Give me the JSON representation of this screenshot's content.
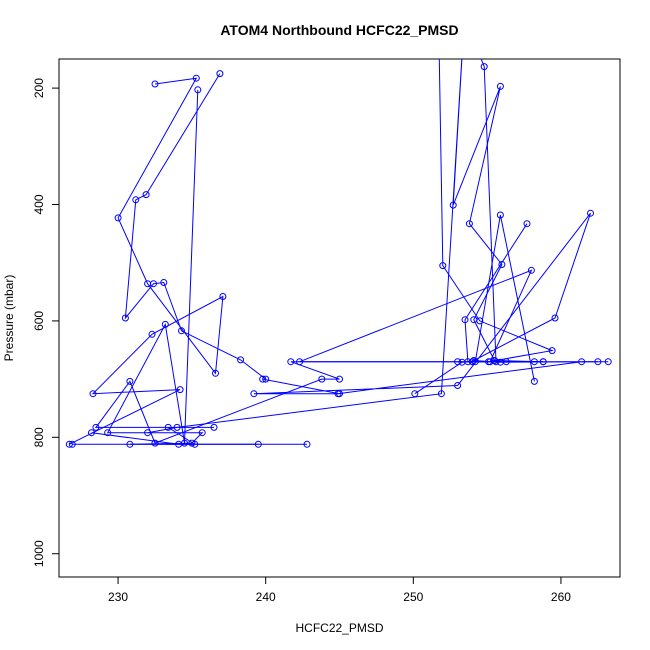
{
  "chart_data": {
    "type": "line",
    "title": "ATOM4 Northbound HCFC22_PMSD",
    "xlabel": "HCFC22_PMSD",
    "ylabel": "Pressure (mbar)",
    "xlim": [
      226,
      264
    ],
    "ylim": [
      1040,
      150
    ],
    "y_reversed": true,
    "x_ticks": [
      230,
      240,
      250,
      260
    ],
    "y_ticks": [
      200,
      400,
      600,
      800,
      1000
    ],
    "grid": false,
    "line_color": "#0000ff",
    "point_color": "#0000ff",
    "segments": [
      {
        "x": [
          236.9,
          231.9,
          231.2,
          230.5,
          232.4,
          233.1,
          234.3,
          238.3,
          240.0
        ],
        "y": [
          175,
          383,
          392,
          595,
          536,
          534,
          617,
          667,
          700
        ]
      },
      {
        "x": [
          232.5,
          235.3,
          230.0,
          232.0,
          236.6,
          237.1,
          232.3,
          228.3,
          234.2,
          226.7
        ],
        "y": [
          193,
          183,
          423,
          536,
          690,
          558,
          623,
          725,
          718,
          812
        ]
      },
      {
        "x": [
          235.4,
          234.5,
          233.2,
          229.3,
          235.7,
          235.0,
          230.8,
          239.5,
          234.1,
          228.2
        ],
        "y": [
          203,
          810,
          606,
          792,
          792,
          810,
          812,
          812,
          812,
          792
        ]
      },
      {
        "x": [
          226.9,
          242.8,
          235.2,
          233.4,
          236.5,
          228.5,
          230.8,
          232.5,
          243.8,
          245.0,
          241.7,
          263.2
        ],
        "y": [
          812,
          812,
          812,
          783,
          783,
          783,
          704,
          810,
          700,
          700,
          670,
          670
        ]
      },
      {
        "x": [
          239.8,
          245.0,
          239.2,
          253.0,
          262.0,
          259.6,
          254.1,
          255.9,
          262.5,
          261.4,
          244.9
        ],
        "y": [
          700,
          725,
          725,
          711,
          415,
          595,
          668,
          671,
          670,
          670,
          725
        ]
      },
      {
        "x": [
          232.0,
          234.0,
          251.9,
          253.5,
          252.7,
          255.9,
          253.8,
          256.0,
          254.1,
          255.5,
          258.8,
          258.2
        ],
        "y": [
          792,
          783,
          725,
          60,
          401,
          197,
          433,
          503,
          598,
          668,
          670,
          670
        ]
      },
      {
        "x": [
          253.2,
          254.8,
          255.6,
          258.8,
          254.0,
          253.0,
          242.3,
          258.0,
          255.2
        ],
        "y": [
          60,
          163,
          670,
          670,
          670,
          670,
          670,
          513,
          670
        ]
      },
      {
        "x": [
          251.7,
          252.0,
          254.5,
          259.4,
          255.1,
          254.2,
          255.9,
          258.2
        ],
        "y": [
          60,
          505,
          600,
          651,
          670,
          670,
          418,
          704
        ]
      },
      {
        "x": [
          250.1,
          253.3,
          254.0,
          256.3,
          253.7,
          253.5,
          257.7
        ],
        "y": [
          725,
          671,
          670,
          670,
          670,
          598,
          433
        ]
      }
    ]
  }
}
